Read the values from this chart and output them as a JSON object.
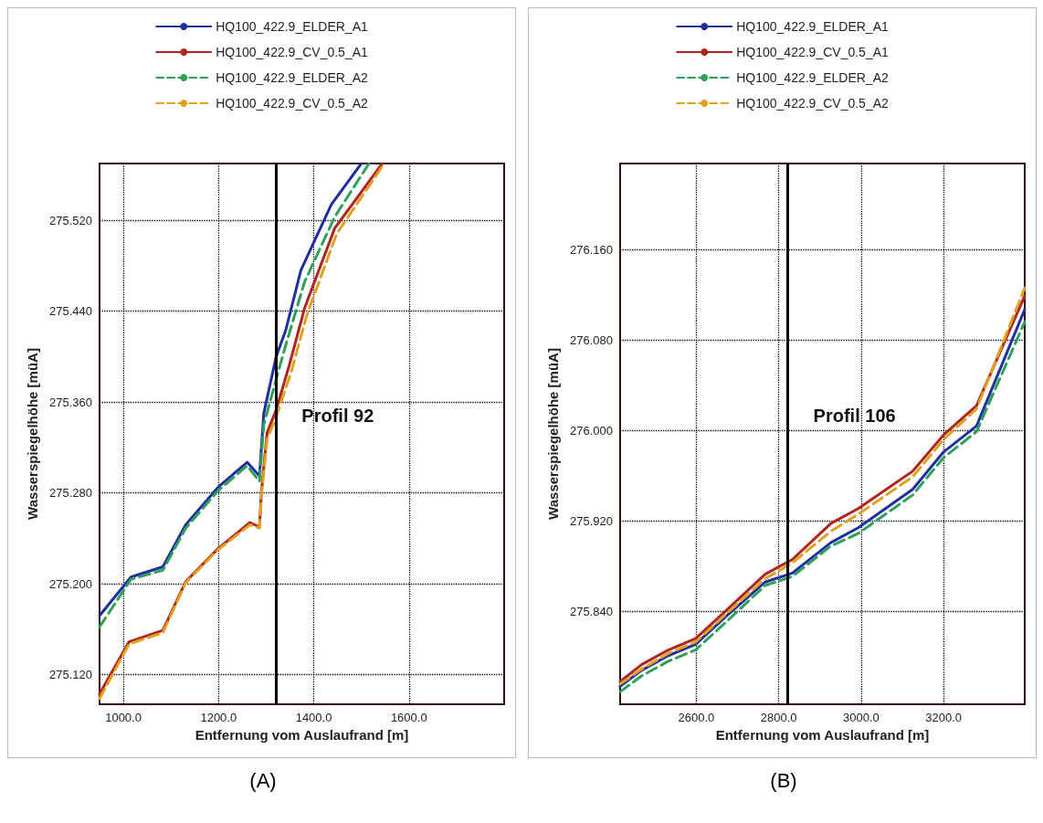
{
  "chart_data": [
    {
      "type": "line",
      "xlabel": "Entfernung vom Auslaufrand [m]",
      "ylabel": "Wasserspiegelhöhe [müA]",
      "xlim": [
        950,
        1800
      ],
      "ylim": [
        275.094,
        275.57
      ],
      "xticks": [
        {
          "value": 1000,
          "label": "1000.0"
        },
        {
          "value": 1200,
          "label": "1200.0"
        },
        {
          "value": 1400,
          "label": "1400.0"
        },
        {
          "value": 1600,
          "label": "1600.0"
        }
      ],
      "yticks": [
        {
          "value": 275.12,
          "label": "275.120"
        },
        {
          "value": 275.2,
          "label": "275.200"
        },
        {
          "value": 275.28,
          "label": "275.280"
        },
        {
          "value": 275.36,
          "label": "275.360"
        },
        {
          "value": 275.44,
          "label": "275.440"
        },
        {
          "value": 275.52,
          "label": "275.520"
        }
      ],
      "grid": true,
      "legend": "top",
      "marker": "none",
      "annotations": [
        "(A)"
      ],
      "ref_lines": [
        {
          "axis": "x",
          "value": 1321,
          "label": "Profil 92",
          "color": "#000000"
        }
      ],
      "series": [
        {
          "name": "HQ100_422.9_ELDER_A1",
          "color": "#1f2f9f",
          "line_style": "solid",
          "x": [
            950,
            1016,
            1083,
            1131,
            1199,
            1260,
            1286,
            1295,
            1321,
            1341,
            1373,
            1437,
            1500
          ],
          "values": [
            275.172,
            275.206,
            275.215,
            275.252,
            275.285,
            275.307,
            275.295,
            275.35,
            275.4,
            275.423,
            275.476,
            275.534,
            275.57
          ]
        },
        {
          "name": "HQ100_422.9_CV_0.5_A1",
          "color": "#b0231f",
          "line_style": "solid",
          "x": [
            950,
            1012,
            1083,
            1131,
            1199,
            1266,
            1286,
            1290,
            1302,
            1321,
            1349,
            1381,
            1444,
            1544
          ],
          "values": [
            275.103,
            275.149,
            275.159,
            275.202,
            275.231,
            275.254,
            275.25,
            275.28,
            275.333,
            275.353,
            275.393,
            275.443,
            275.513,
            275.57
          ]
        },
        {
          "name": "HQ100_422.9_ELDER_A2",
          "color": "#2ea05a",
          "line_style": "dashed",
          "x": [
            950,
            1016,
            1083,
            1131,
            1199,
            1260,
            1286,
            1295,
            1321,
            1341,
            1381,
            1444,
            1516
          ],
          "values": [
            275.162,
            275.204,
            275.212,
            275.249,
            275.282,
            275.304,
            275.29,
            275.34,
            275.38,
            275.41,
            275.466,
            275.523,
            275.57
          ]
        },
        {
          "name": "HQ100_422.9_CV_0.5_A2",
          "color": "#e0a020",
          "line_style": "dashed",
          "x": [
            950,
            1012,
            1083,
            1131,
            1199,
            1266,
            1286,
            1290,
            1302,
            1321,
            1353,
            1385,
            1448,
            1548
          ],
          "values": [
            275.099,
            275.147,
            275.157,
            275.201,
            275.23,
            275.252,
            275.249,
            275.277,
            275.327,
            275.347,
            275.387,
            275.436,
            275.508,
            275.57
          ]
        }
      ]
    },
    {
      "type": "line",
      "xlabel": "Entfernung vom Auslaufrand [m]",
      "ylabel": "Wasserspiegelhöhe [müA]",
      "xlim": [
        2415,
        3397
      ],
      "ylim": [
        275.758,
        276.236
      ],
      "xticks": [
        {
          "value": 2600,
          "label": "2600.0"
        },
        {
          "value": 2800,
          "label": "2800.0"
        },
        {
          "value": 3000,
          "label": "3000.0"
        },
        {
          "value": 3200,
          "label": "3200.0"
        }
      ],
      "yticks": [
        {
          "value": 275.84,
          "label": "275.840"
        },
        {
          "value": 275.92,
          "label": "275.920"
        },
        {
          "value": 276,
          "label": "276.000"
        },
        {
          "value": 276.08,
          "label": "276.080"
        },
        {
          "value": 276.16,
          "label": "276.160"
        }
      ],
      "grid": true,
      "legend": "top",
      "marker": "none",
      "annotations": [
        "(B)"
      ],
      "ref_lines": [
        {
          "axis": "x",
          "value": 2822,
          "label": "Profil 106",
          "color": "#000000"
        }
      ],
      "series": [
        {
          "name": "HQ100_422.9_ELDER_A1",
          "color": "#1f2f9f",
          "line_style": "solid",
          "x": [
            2415,
            2467,
            2532,
            2598,
            2673,
            2767,
            2833,
            2927,
            2993,
            3125,
            3200,
            3280,
            3397
          ],
          "values": [
            275.774,
            275.788,
            275.801,
            275.811,
            275.836,
            275.866,
            275.874,
            275.901,
            275.914,
            275.948,
            275.981,
            276.004,
            276.107
          ]
        },
        {
          "name": "HQ100_422.9_CV_0.5_A1",
          "color": "#b0231f",
          "line_style": "solid",
          "x": [
            2415,
            2467,
            2532,
            2598,
            2673,
            2767,
            2833,
            2927,
            2993,
            3125,
            3200,
            3280,
            3397
          ],
          "values": [
            275.778,
            275.793,
            275.806,
            275.816,
            275.841,
            275.873,
            275.886,
            275.918,
            275.931,
            275.964,
            275.996,
            276.022,
            276.119
          ]
        },
        {
          "name": "HQ100_422.9_ELDER_A2",
          "color": "#2ea05a",
          "line_style": "dashed",
          "x": [
            2415,
            2467,
            2532,
            2598,
            2673,
            2767,
            2833,
            2927,
            2993,
            3125,
            3200,
            3280,
            3397
          ],
          "values": [
            275.769,
            275.783,
            275.796,
            275.806,
            275.831,
            275.863,
            275.871,
            275.898,
            275.909,
            275.943,
            275.976,
            275.999,
            276.096
          ]
        },
        {
          "name": "HQ100_422.9_CV_0.5_A2",
          "color": "#e0a020",
          "line_style": "dashed",
          "x": [
            2415,
            2467,
            2532,
            2598,
            2673,
            2767,
            2833,
            2927,
            2993,
            3125,
            3200,
            3280,
            3397
          ],
          "values": [
            275.776,
            275.789,
            275.803,
            275.813,
            275.838,
            275.869,
            275.883,
            275.911,
            275.926,
            275.959,
            275.992,
            276.019,
            276.126
          ]
        }
      ]
    }
  ]
}
